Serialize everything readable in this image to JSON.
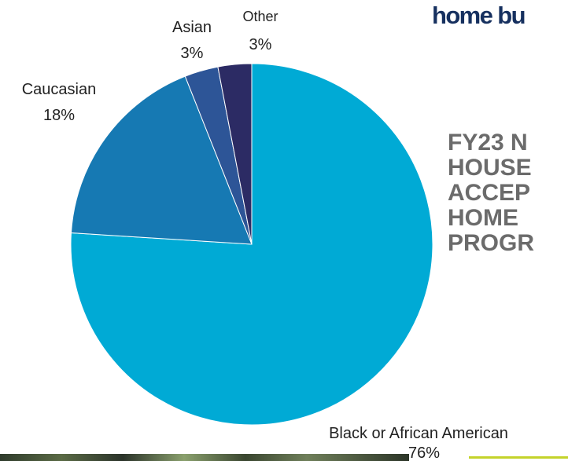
{
  "header": {
    "title": "home bu",
    "subtitle_lines": [
      "FY23 N",
      "HOUSE",
      "ACCEP",
      "HOME",
      "PROGR"
    ]
  },
  "chart_data": {
    "type": "pie",
    "title": "",
    "slices": [
      {
        "label": "Black or African American",
        "pct_label": "76%",
        "value": 76,
        "color": "#00aad5"
      },
      {
        "label": "Caucasian",
        "pct_label": "18%",
        "value": 18,
        "color": "#1679b3"
      },
      {
        "label": "Asian",
        "pct_label": "3%",
        "value": 3,
        "color": "#2d5597"
      },
      {
        "label": "Other",
        "pct_label": "3%",
        "value": 3,
        "color": "#2c2b64"
      }
    ]
  },
  "colors": {
    "heading": "#16305f",
    "subheading": "#6b6b6b",
    "accent_line": "#c4d32a"
  }
}
